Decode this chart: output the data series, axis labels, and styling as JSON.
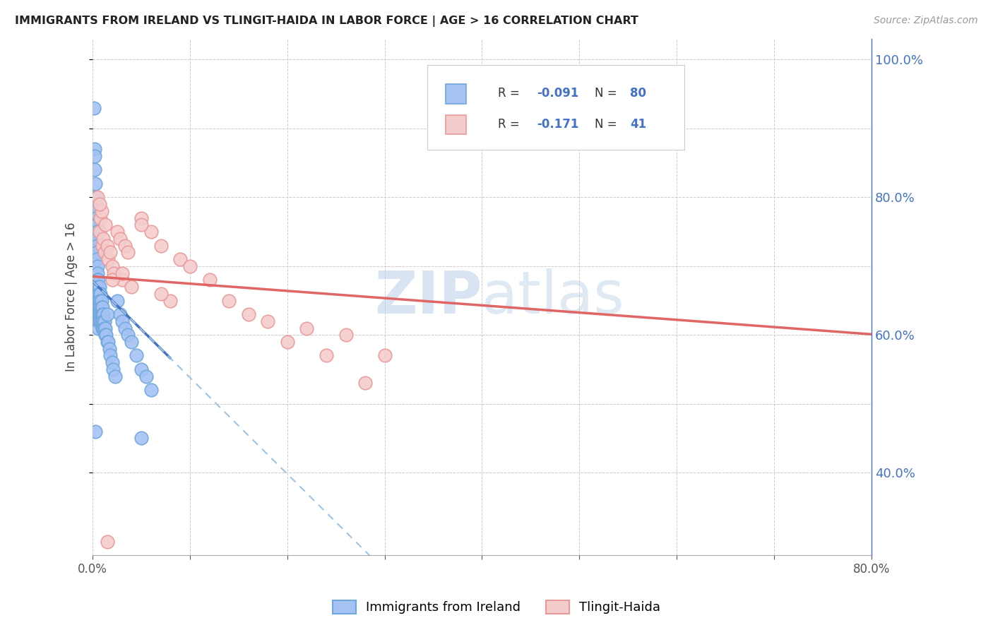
{
  "title": "IMMIGRANTS FROM IRELAND VS TLINGIT-HAIDA IN LABOR FORCE | AGE > 16 CORRELATION CHART",
  "source": "Source: ZipAtlas.com",
  "ylabel": "In Labor Force | Age > 16",
  "xlim": [
    0.0,
    0.8
  ],
  "ylim": [
    0.28,
    1.03
  ],
  "yticklabels_right": [
    "40.0%",
    "60.0%",
    "80.0%",
    "100.0%"
  ],
  "yticks_right": [
    0.4,
    0.6,
    0.8,
    1.0
  ],
  "color_ireland": "#6fa8dc",
  "color_tlingit": "#ea9999",
  "color_ireland_fill": "#a4c2f4",
  "color_tlingit_fill": "#f4cccc",
  "color_line_ireland_solid": "#4472c4",
  "color_line_ireland_dashed": "#9dc3e6",
  "color_line_tlingit": "#e06666",
  "watermark_zip": "ZIP",
  "watermark_atlas": "atlas",
  "background_color": "#ffffff",
  "grid_color": "#cccccc",
  "ireland_x": [
    0.001,
    0.002,
    0.002,
    0.002,
    0.003,
    0.003,
    0.003,
    0.003,
    0.003,
    0.003,
    0.004,
    0.004,
    0.004,
    0.004,
    0.004,
    0.004,
    0.005,
    0.005,
    0.005,
    0.005,
    0.005,
    0.005,
    0.005,
    0.005,
    0.005,
    0.006,
    0.006,
    0.006,
    0.006,
    0.006,
    0.006,
    0.006,
    0.006,
    0.007,
    0.007,
    0.007,
    0.007,
    0.007,
    0.007,
    0.008,
    0.008,
    0.008,
    0.008,
    0.008,
    0.009,
    0.009,
    0.009,
    0.009,
    0.01,
    0.01,
    0.01,
    0.01,
    0.011,
    0.011,
    0.011,
    0.012,
    0.012,
    0.013,
    0.013,
    0.014,
    0.015,
    0.015,
    0.016,
    0.017,
    0.018,
    0.02,
    0.021,
    0.023,
    0.025,
    0.028,
    0.03,
    0.033,
    0.036,
    0.04,
    0.045,
    0.05,
    0.055,
    0.06,
    0.003,
    0.05
  ],
  "ireland_y": [
    0.93,
    0.87,
    0.86,
    0.84,
    0.82,
    0.8,
    0.79,
    0.78,
    0.77,
    0.76,
    0.76,
    0.75,
    0.74,
    0.73,
    0.72,
    0.71,
    0.7,
    0.69,
    0.68,
    0.67,
    0.66,
    0.65,
    0.64,
    0.63,
    0.62,
    0.68,
    0.67,
    0.66,
    0.65,
    0.64,
    0.63,
    0.62,
    0.61,
    0.67,
    0.66,
    0.65,
    0.64,
    0.63,
    0.62,
    0.66,
    0.65,
    0.64,
    0.63,
    0.62,
    0.65,
    0.64,
    0.63,
    0.62,
    0.64,
    0.63,
    0.62,
    0.61,
    0.63,
    0.62,
    0.61,
    0.62,
    0.61,
    0.61,
    0.6,
    0.6,
    0.63,
    0.59,
    0.59,
    0.58,
    0.57,
    0.56,
    0.55,
    0.54,
    0.65,
    0.63,
    0.62,
    0.61,
    0.6,
    0.59,
    0.57,
    0.55,
    0.54,
    0.52,
    0.46,
    0.45
  ],
  "tlingit_x": [
    0.005,
    0.007,
    0.008,
    0.009,
    0.01,
    0.011,
    0.012,
    0.013,
    0.015,
    0.016,
    0.018,
    0.02,
    0.022,
    0.025,
    0.028,
    0.03,
    0.033,
    0.036,
    0.04,
    0.05,
    0.06,
    0.07,
    0.08,
    0.09,
    0.1,
    0.12,
    0.14,
    0.16,
    0.18,
    0.2,
    0.22,
    0.24,
    0.26,
    0.28,
    0.3,
    0.007,
    0.02,
    0.03,
    0.05,
    0.07,
    0.015
  ],
  "tlingit_y": [
    0.8,
    0.75,
    0.77,
    0.78,
    0.73,
    0.74,
    0.72,
    0.76,
    0.73,
    0.71,
    0.72,
    0.7,
    0.69,
    0.75,
    0.74,
    0.68,
    0.73,
    0.72,
    0.67,
    0.77,
    0.75,
    0.73,
    0.65,
    0.71,
    0.7,
    0.68,
    0.65,
    0.63,
    0.62,
    0.59,
    0.61,
    0.57,
    0.6,
    0.53,
    0.57,
    0.79,
    0.68,
    0.69,
    0.76,
    0.66,
    0.3
  ]
}
